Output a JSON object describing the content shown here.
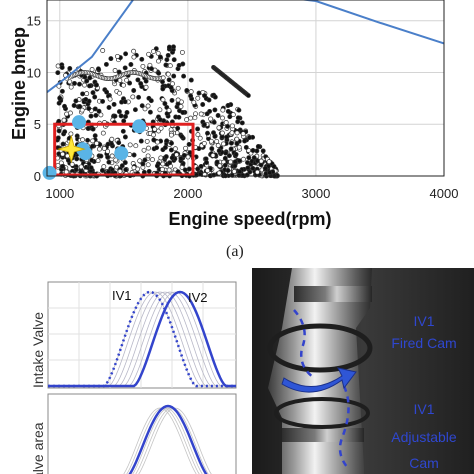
{
  "figure": {
    "panel_a_caption": "(a)",
    "colors": {
      "envelope": "#4a7fc9",
      "scatter_fill": "#111111",
      "scatter_edge": "#333333",
      "box": "#e02020",
      "points": "#5ab4e6",
      "star": "#ffe83a",
      "curve": "#3344cc",
      "camera_bg": "#2a2a2a"
    }
  },
  "chart_data": [
    {
      "type": "scatter",
      "xlabel": "Engine speed(rpm)",
      "ylabel": "Engine bmep(bar)",
      "ylabel_visible": "Engine bmep",
      "xlim": [
        900,
        4000
      ],
      "ylim": [
        0,
        17
      ],
      "x_ticks": [
        1000,
        2000,
        3000,
        4000
      ],
      "y_ticks": [
        0,
        5,
        10,
        15
      ],
      "x_tick_labels": [
        "1000",
        "2000",
        "3000",
        "4000"
      ],
      "y_tick_labels": [
        "0",
        "5",
        "10",
        "15"
      ],
      "grid": true,
      "envelope": {
        "x": [
          900,
          1050,
          1250,
          1600,
          2600,
          3000,
          3500,
          4000
        ],
        "y": [
          8.1,
          9.5,
          11.5,
          17.5,
          17.5,
          16.9,
          14.8,
          12.8
        ]
      },
      "highlight_box": {
        "x": [
          960,
          2040
        ],
        "y": [
          0,
          5.0
        ]
      },
      "operating_points": {
        "x": [
          920,
          1150,
          1180,
          1200,
          1480,
          1620
        ],
        "y": [
          0.3,
          5.2,
          2.6,
          2.2,
          2.2,
          4.8
        ]
      },
      "star_point": {
        "x": 1090,
        "y": 2.6
      }
    },
    {
      "type": "line",
      "ylabel_top": "Intake Valve",
      "ylabel_bottom": "alve area",
      "series": [
        {
          "name": "IV1",
          "style": "dotted"
        },
        {
          "name": "IV2",
          "style": "solid"
        }
      ]
    }
  ],
  "photo": {
    "label_1_line1": "IV1",
    "label_1_line2": "Fired Cam",
    "label_2_line1": "IV1",
    "label_2_line2": "Adjustable",
    "label_2_line3": "Cam"
  }
}
